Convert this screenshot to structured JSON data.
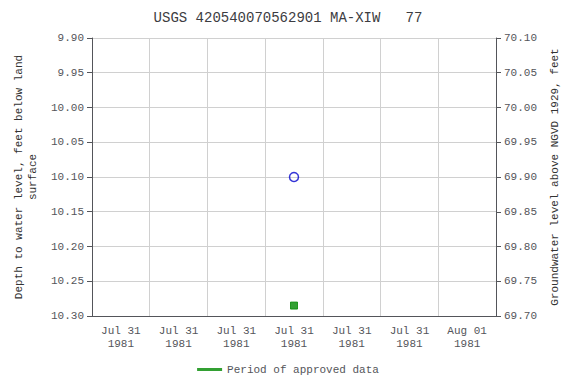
{
  "chart_data": {
    "type": "scatter",
    "title": "USGS 420540070562901 MA-XIW   77",
    "ylabel": "Depth to water level, feet below land\nsurface",
    "y2label": "Groundwater level above NGVD 1929, feet",
    "categories": [
      "Jul 31\n1981",
      "Jul 31\n1981",
      "Jul 31\n1981",
      "Jul 31\n1981",
      "Jul 31\n1981",
      "Jul 31\n1981",
      "Aug 01\n1981"
    ],
    "series": [
      {
        "values": [
          null,
          null,
          null,
          10.1,
          null,
          null,
          null
        ],
        "color": "#0000cc",
        "marker": "open_circle"
      },
      {
        "name": "Period of approved data",
        "values": [
          null,
          null,
          null,
          10.285,
          null,
          null,
          null
        ],
        "color": "#008800",
        "marker": "square"
      }
    ],
    "ylim": [
      10.3,
      9.9
    ],
    "yticks": [
      {
        "value": 9.9,
        "label": "9.90"
      },
      {
        "value": 9.95,
        "label": "9.95"
      },
      {
        "value": 10.0,
        "label": "10.00"
      },
      {
        "value": 10.05,
        "label": "10.05"
      },
      {
        "value": 10.1,
        "label": "10.10"
      },
      {
        "value": 10.15,
        "label": "10.15"
      },
      {
        "value": 10.2,
        "label": "10.20"
      },
      {
        "value": 10.25,
        "label": "10.25"
      },
      {
        "value": 10.3,
        "label": "10.30"
      }
    ],
    "y2lim": [
      69.7,
      70.1
    ],
    "y2ticks": [
      {
        "value": 70.1,
        "label": "70.10"
      },
      {
        "value": 70.05,
        "label": "70.05"
      },
      {
        "value": 70.0,
        "label": "70.00"
      },
      {
        "value": 69.95,
        "label": "69.95"
      },
      {
        "value": 69.9,
        "label": "69.90"
      },
      {
        "value": 69.85,
        "label": "69.85"
      },
      {
        "value": 69.8,
        "label": "69.80"
      },
      {
        "value": 69.75,
        "label": "69.75"
      },
      {
        "value": 69.7,
        "label": "69.70"
      }
    ],
    "grid": true,
    "legend": "bottom"
  }
}
